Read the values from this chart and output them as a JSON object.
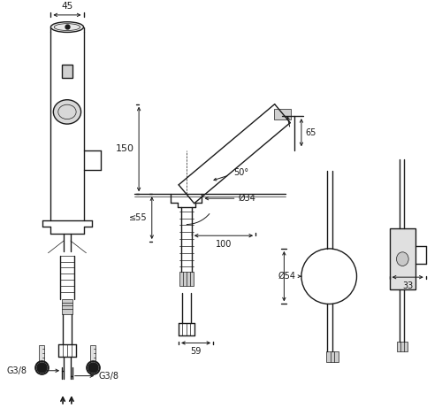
{
  "bg_color": "#ffffff",
  "line_color": "#1a1a1a",
  "fig_width": 5.0,
  "fig_height": 4.7,
  "dpi": 100,
  "annotations": {
    "dim_45": "45",
    "dim_150": "150",
    "dim_55": "≤55",
    "dim_34": "Ø34",
    "dim_100": "100",
    "dim_50": "50°",
    "dim_65": "65",
    "dim_59": "59",
    "dim_54": "Ø54",
    "dim_33": "33",
    "label_g38_left": "G3/8",
    "label_g38_right": "G3/8"
  }
}
